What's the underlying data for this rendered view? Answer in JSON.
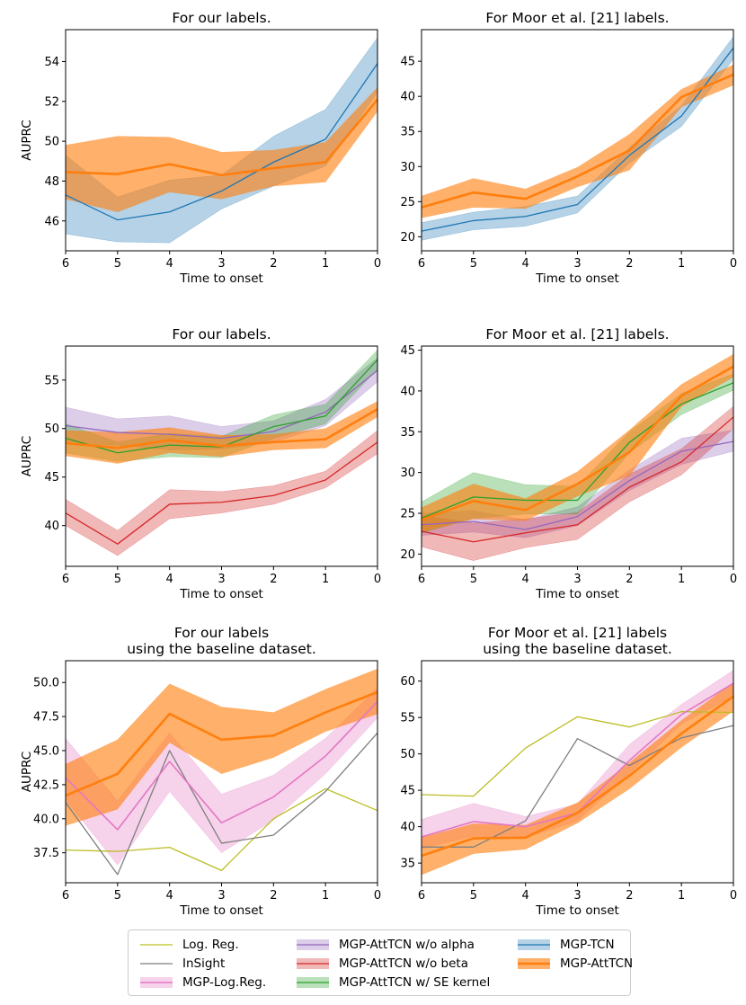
{
  "series_styles": {
    "logreg": {
      "label": "Log. Reg.",
      "color": "#bcbd22",
      "band": false,
      "lw": 1.3
    },
    "insight": {
      "label": "InSight",
      "color": "#7f7f7f",
      "band": false,
      "lw": 1.3
    },
    "mgp_logreg": {
      "label": "MGP-Log.Reg.",
      "color": "#e377c2",
      "band": true,
      "lw": 1.6
    },
    "wo_alpha": {
      "label": "MGP-AttTCN w/o alpha",
      "color": "#9467bd",
      "band": true,
      "lw": 1.3
    },
    "wo_beta": {
      "label": "MGP-AttTCN w/o beta",
      "color": "#d62728",
      "band": true,
      "lw": 1.3
    },
    "se_kernel": {
      "label": "MGP-AttTCN w/ SE kernel",
      "color": "#2ca02c",
      "band": true,
      "lw": 1.3
    },
    "mgp_tcn": {
      "label": "MGP-TCN",
      "color": "#1f77b4",
      "band": true,
      "lw": 1.3
    },
    "mgp_atttcn": {
      "label": "MGP-AttTCN",
      "color": "#ff7f0e",
      "band": true,
      "lw": 2.6
    }
  },
  "legend": {
    "columns": [
      [
        "logreg",
        "insight",
        "mgp_logreg"
      ],
      [
        "wo_alpha",
        "wo_beta",
        "se_kernel"
      ],
      [
        "mgp_tcn",
        "mgp_atttcn"
      ]
    ]
  },
  "chart_data": [
    {
      "type": "line",
      "title": "For our labels.",
      "xlabel": "Time to onset",
      "ylabel": "AUPRC",
      "x": [
        6,
        5,
        4,
        3,
        2,
        1,
        0
      ],
      "xticks": [
        "6",
        "5",
        "4",
        "3",
        "2",
        "1",
        "0"
      ],
      "ylim": [
        44.5,
        55.6
      ],
      "yticks": [
        "46",
        "48",
        "50",
        "52",
        "54"
      ],
      "series": [
        {
          "key": "mgp_tcn",
          "values": [
            47.3,
            46.05,
            46.45,
            47.5,
            48.95,
            50.1,
            53.9
          ],
          "lower": [
            45.35,
            44.95,
            44.9,
            46.6,
            47.75,
            48.75,
            52.45
          ],
          "upper": [
            49.3,
            47.2,
            48.05,
            48.3,
            50.25,
            51.6,
            55.2
          ]
        },
        {
          "key": "mgp_atttcn",
          "values": [
            48.45,
            48.35,
            48.85,
            48.3,
            48.65,
            48.95,
            52.1
          ],
          "lower": [
            47.1,
            46.45,
            47.45,
            47.1,
            47.75,
            47.95,
            51.5
          ],
          "upper": [
            49.8,
            50.25,
            50.2,
            49.45,
            49.55,
            49.95,
            52.7
          ]
        }
      ]
    },
    {
      "type": "line",
      "title": "For Moor et al. [21] labels.",
      "xlabel": "Time to onset",
      "ylabel": "",
      "x": [
        6,
        5,
        4,
        3,
        2,
        1,
        0
      ],
      "xticks": [
        "6",
        "5",
        "4",
        "3",
        "2",
        "1",
        "0"
      ],
      "ylim": [
        18.0,
        49.5
      ],
      "yticks": [
        "20",
        "25",
        "30",
        "35",
        "40",
        "45"
      ],
      "series": [
        {
          "key": "mgp_tcn",
          "values": [
            20.8,
            22.3,
            22.9,
            24.6,
            31.6,
            37.2,
            46.9
          ],
          "lower": [
            19.5,
            21.0,
            21.5,
            23.4,
            30.5,
            35.7,
            45.3
          ],
          "upper": [
            22.0,
            23.5,
            24.3,
            25.8,
            32.7,
            38.7,
            48.5
          ]
        },
        {
          "key": "mgp_atttcn",
          "values": [
            24.2,
            26.3,
            25.4,
            28.6,
            32.3,
            39.9,
            43.1
          ],
          "lower": [
            22.7,
            24.2,
            24.0,
            27.1,
            29.5,
            38.5,
            41.6
          ],
          "upper": [
            25.8,
            28.3,
            26.8,
            29.9,
            34.6,
            41.0,
            44.5
          ]
        }
      ]
    },
    {
      "type": "line",
      "title": "For our labels.",
      "xlabel": "Time to onset",
      "ylabel": "AUPRC",
      "x": [
        6,
        5,
        4,
        3,
        2,
        1,
        0
      ],
      "xticks": [
        "6",
        "5",
        "4",
        "3",
        "2",
        "1",
        "0"
      ],
      "ylim": [
        35.8,
        58.5
      ],
      "yticks": [
        "40",
        "45",
        "50",
        "55"
      ],
      "series": [
        {
          "key": "wo_alpha",
          "values": [
            50.3,
            49.6,
            49.4,
            49.0,
            49.7,
            51.7,
            56.0
          ],
          "lower": [
            48.5,
            48.3,
            47.8,
            47.9,
            48.6,
            50.3,
            54.8
          ],
          "upper": [
            52.2,
            51.0,
            51.3,
            50.2,
            50.8,
            53.0,
            57.3
          ]
        },
        {
          "key": "wo_beta",
          "values": [
            41.3,
            38.1,
            42.2,
            42.4,
            43.1,
            44.7,
            48.6
          ],
          "lower": [
            40.0,
            36.9,
            40.7,
            41.3,
            42.2,
            43.9,
            47.4
          ],
          "upper": [
            42.7,
            39.5,
            43.7,
            43.5,
            44.1,
            45.6,
            49.8
          ]
        },
        {
          "key": "se_kernel",
          "values": [
            49.0,
            47.5,
            48.3,
            48.1,
            50.2,
            51.3,
            57.1
          ],
          "lower": [
            47.5,
            46.6,
            47.1,
            47.0,
            49.0,
            50.5,
            56.1
          ],
          "upper": [
            50.5,
            48.6,
            49.5,
            49.2,
            51.4,
            52.5,
            58.1
          ]
        },
        {
          "key": "mgp_atttcn",
          "values": [
            48.5,
            48.0,
            48.8,
            48.2,
            48.6,
            48.9,
            52.0
          ],
          "lower": [
            47.2,
            46.4,
            47.5,
            47.1,
            47.8,
            48.0,
            51.2
          ],
          "upper": [
            49.8,
            49.6,
            50.1,
            49.3,
            49.4,
            50.0,
            52.8
          ]
        }
      ]
    },
    {
      "type": "line",
      "title": "For Moor et al. [21] labels.",
      "xlabel": "Time to onset",
      "ylabel": "",
      "x": [
        6,
        5,
        4,
        3,
        2,
        1,
        0
      ],
      "xticks": [
        "6",
        "5",
        "4",
        "3",
        "2",
        "1",
        "0"
      ],
      "ylim": [
        18.5,
        45.5
      ],
      "yticks": [
        "20",
        "25",
        "30",
        "35",
        "40",
        "45"
      ],
      "series": [
        {
          "key": "wo_alpha",
          "values": [
            23.6,
            24.0,
            23.0,
            24.6,
            29.0,
            32.6,
            33.8
          ],
          "lower": [
            22.3,
            22.7,
            22.0,
            23.5,
            27.8,
            31.0,
            32.6
          ],
          "upper": [
            25.0,
            25.3,
            24.2,
            25.8,
            30.3,
            34.2,
            35.2
          ]
        },
        {
          "key": "wo_beta",
          "values": [
            22.8,
            21.5,
            22.6,
            23.6,
            28.2,
            31.3,
            36.8
          ],
          "lower": [
            20.9,
            19.2,
            20.8,
            21.8,
            26.4,
            29.7,
            35.4
          ],
          "upper": [
            24.7,
            23.8,
            24.3,
            25.1,
            29.8,
            32.9,
            38.1
          ]
        },
        {
          "key": "se_kernel",
          "values": [
            24.4,
            27.0,
            26.6,
            26.6,
            33.7,
            38.4,
            41.0
          ],
          "lower": [
            22.6,
            24.4,
            24.9,
            24.9,
            32.4,
            37.1,
            40.1
          ],
          "upper": [
            26.4,
            30.0,
            28.5,
            28.3,
            35.0,
            39.7,
            42.1
          ]
        },
        {
          "key": "mgp_atttcn",
          "values": [
            24.2,
            26.5,
            25.4,
            28.6,
            32.5,
            39.4,
            43.0
          ],
          "lower": [
            22.7,
            24.3,
            24.1,
            27.1,
            29.6,
            38.1,
            41.7
          ],
          "upper": [
            25.7,
            28.6,
            26.8,
            30.1,
            35.2,
            40.8,
            44.5
          ]
        }
      ]
    },
    {
      "type": "line",
      "title": "For our labels\nusing the baseline dataset.",
      "xlabel": "Time to onset",
      "ylabel": "AUPRC",
      "x": [
        6,
        5,
        4,
        3,
        2,
        1,
        0
      ],
      "xticks": [
        "6",
        "5",
        "4",
        "3",
        "2",
        "1",
        "0"
      ],
      "ylim": [
        35.3,
        51.6
      ],
      "yticks": [
        "37.5",
        "40.0",
        "42.5",
        "45.0",
        "47.5",
        "50.0"
      ],
      "series": [
        {
          "key": "logreg",
          "values": [
            37.7,
            37.6,
            37.9,
            36.2,
            40.0,
            42.2,
            40.6
          ]
        },
        {
          "key": "insight",
          "values": [
            41.2,
            35.9,
            45.0,
            38.2,
            38.8,
            42.0,
            46.3
          ]
        },
        {
          "key": "mgp_logreg",
          "values": [
            43.0,
            39.2,
            44.2,
            39.7,
            41.6,
            44.6,
            48.6
          ],
          "lower": [
            41.4,
            36.6,
            42.0,
            37.5,
            39.9,
            43.3,
            47.4
          ],
          "upper": [
            45.9,
            41.3,
            46.3,
            41.8,
            43.2,
            45.9,
            49.6
          ]
        },
        {
          "key": "mgp_atttcn",
          "values": [
            41.7,
            43.3,
            47.7,
            45.8,
            46.1,
            47.8,
            49.3
          ],
          "lower": [
            39.5,
            40.7,
            45.6,
            43.3,
            44.5,
            46.4,
            47.7
          ],
          "upper": [
            44.0,
            45.8,
            49.9,
            48.2,
            47.8,
            49.5,
            51.0
          ]
        }
      ]
    },
    {
      "type": "line",
      "title": "For Moor et al. [21] labels\nusing the baseline dataset.",
      "xlabel": "Time to onset",
      "ylabel": "",
      "x": [
        6,
        5,
        4,
        3,
        2,
        1,
        0
      ],
      "xticks": [
        "6",
        "5",
        "4",
        "3",
        "2",
        "1",
        "0"
      ],
      "ylim": [
        32.3,
        62.8
      ],
      "yticks": [
        "35",
        "40",
        "45",
        "50",
        "55",
        "60"
      ],
      "series": [
        {
          "key": "logreg",
          "values": [
            44.4,
            44.2,
            50.8,
            55.1,
            53.7,
            55.8,
            55.7
          ]
        },
        {
          "key": "insight",
          "values": [
            37.2,
            37.2,
            40.8,
            52.1,
            48.4,
            52.2,
            53.9
          ]
        },
        {
          "key": "mgp_logreg",
          "values": [
            38.6,
            40.7,
            40.0,
            41.9,
            49.1,
            55.4,
            59.7
          ],
          "lower": [
            37.0,
            38.7,
            38.5,
            40.8,
            47.3,
            54.1,
            57.9
          ],
          "upper": [
            41.0,
            43.2,
            41.4,
            43.1,
            51.3,
            56.8,
            61.5
          ]
        },
        {
          "key": "mgp_atttcn",
          "values": [
            36.0,
            38.4,
            38.5,
            41.9,
            47.0,
            52.8,
            57.9
          ],
          "lower": [
            33.4,
            36.3,
            36.9,
            40.5,
            45.2,
            50.9,
            55.9
          ],
          "upper": [
            38.5,
            40.4,
            40.2,
            43.3,
            48.8,
            54.6,
            59.8
          ]
        }
      ]
    }
  ]
}
